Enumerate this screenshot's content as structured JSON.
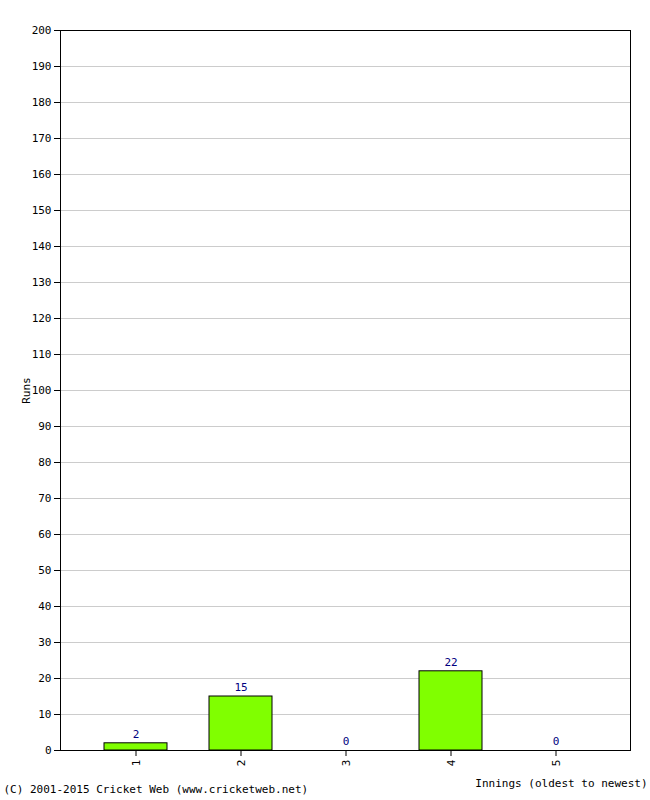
{
  "chart_data": {
    "type": "bar",
    "categories": [
      "1",
      "2",
      "3",
      "4",
      "5"
    ],
    "values": [
      2,
      15,
      0,
      22,
      0
    ],
    "color": "#80ff00",
    "x_label": "Innings (oldest to newest)",
    "y_label": "Runs",
    "ylim": [
      0,
      200
    ],
    "yticks": [
      0,
      10,
      20,
      30,
      40,
      50,
      60,
      70,
      80,
      90,
      100,
      110,
      120,
      130,
      140,
      150,
      160,
      170,
      180,
      190,
      200
    ],
    "grid": true,
    "data_labels": true,
    "caption": "(C) 2001-2015 Cricket Web (www.cricketweb.net)"
  }
}
